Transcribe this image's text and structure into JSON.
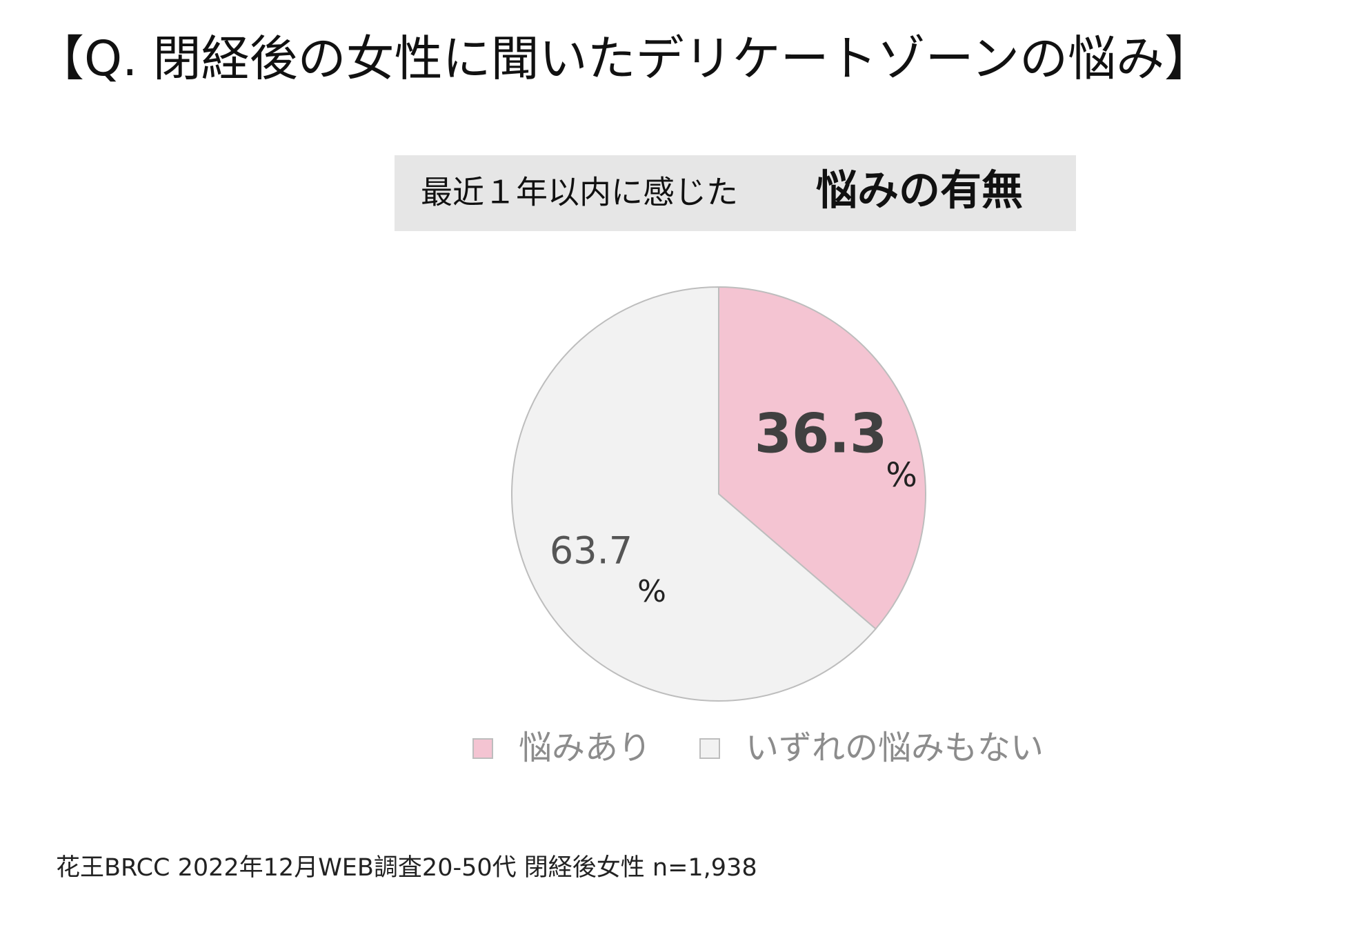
{
  "chart_data": {
    "type": "pie",
    "title": "【Q. 閉経後の女性に聞いたデリケートゾーンの悩み】",
    "subtitle": "最近１年以内に感じた",
    "subtitle_emphasis": "悩みの有無",
    "categories": [
      "悩みあり",
      "いずれの悩みもない"
    ],
    "values": [
      36.3,
      63.7
    ],
    "unit": "%",
    "colors": [
      "#f4c4d2",
      "#f2f2f2"
    ],
    "footnote": "花王BRCC  2022年12月WEB調査20-50代   閉経後女性 n=1,938"
  }
}
